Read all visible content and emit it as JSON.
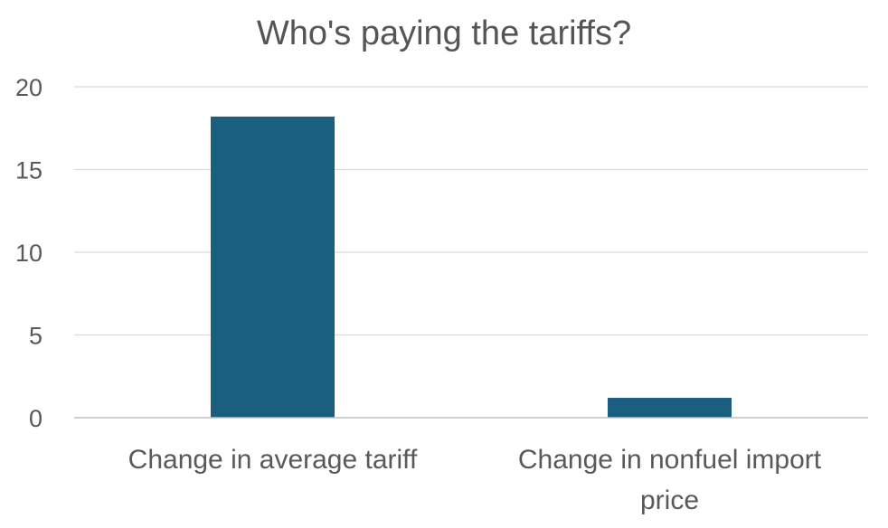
{
  "chart_data": {
    "type": "bar",
    "title": "Who's paying the tariffs?",
    "categories": [
      [
        "Change in average tariff"
      ],
      [
        "Change in nonfuel import",
        "price"
      ]
    ],
    "values": [
      18.2,
      1.2
    ],
    "ylim": [
      0,
      20
    ],
    "yticks": [
      0,
      5,
      10,
      15,
      20
    ],
    "grid": true,
    "legend": "none",
    "bar_color": "#1a5e80"
  }
}
